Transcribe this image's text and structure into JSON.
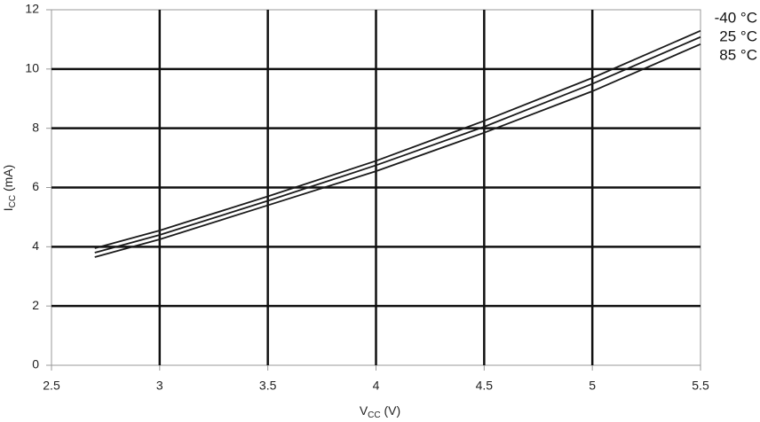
{
  "chart_data": {
    "type": "line",
    "xlabel": [
      "V",
      "CC",
      " (V)"
    ],
    "ylabel": [
      "I",
      "CC",
      " (mA)"
    ],
    "x": [
      2.7,
      3,
      3.5,
      4,
      4.5,
      5,
      5.5
    ],
    "series": [
      {
        "name": "-40 °C",
        "color": "#1a1a1a",
        "values": [
          3.95,
          4.55,
          5.7,
          6.9,
          8.25,
          9.7,
          11.29
        ]
      },
      {
        "name": "25 °C",
        "color": "#1a1a1a",
        "values": [
          3.8,
          4.4,
          5.55,
          6.75,
          8.05,
          9.5,
          11.08
        ]
      },
      {
        "name": "85 °C",
        "color": "#1a1a1a",
        "values": [
          3.65,
          4.25,
          5.4,
          6.55,
          7.85,
          9.25,
          10.84
        ]
      }
    ],
    "xlim": [
      2.5,
      5.5
    ],
    "xticks": [
      2.5,
      3,
      3.5,
      4,
      4.5,
      5,
      5.5
    ],
    "ylim": [
      0,
      12
    ],
    "yticks": [
      0,
      2,
      4,
      6,
      8,
      10,
      12
    ],
    "grid": true
  }
}
